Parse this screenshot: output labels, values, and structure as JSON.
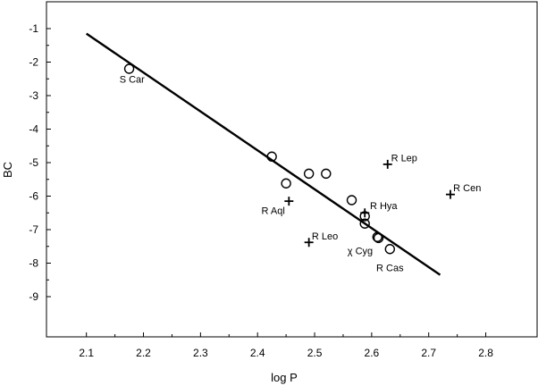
{
  "chart_data": {
    "type": "scatter",
    "xlabel": "log P",
    "ylabel": "BC",
    "xlim": [
      2.03,
      2.89
    ],
    "ylim": [
      -10.2,
      -0.2
    ],
    "grid": false,
    "x_ticks": [
      2.1,
      2.2,
      2.3,
      2.4,
      2.5,
      2.6,
      2.7,
      2.8
    ],
    "y_ticks": [
      -1,
      -2,
      -3,
      -4,
      -5,
      -6,
      -7,
      -8,
      -9
    ],
    "x_tick_labels": [
      "2.1",
      "2.2",
      "2.3",
      "2.4",
      "2.5",
      "2.6",
      "2.7",
      "2.8"
    ],
    "y_tick_labels": [
      "-1",
      "-2",
      "-3",
      "-4",
      "-5",
      "-6",
      "-7",
      "-8",
      "-9"
    ],
    "fit_line": {
      "x": [
        2.1,
        2.72
      ],
      "y": [
        -1.15,
        -8.35
      ]
    },
    "series": [
      {
        "marker": "circle",
        "points": [
          {
            "x": 2.175,
            "y": -2.2
          },
          {
            "x": 2.425,
            "y": -4.82
          },
          {
            "x": 2.45,
            "y": -5.62
          },
          {
            "x": 2.49,
            "y": -5.33
          },
          {
            "x": 2.52,
            "y": -5.33
          },
          {
            "x": 2.565,
            "y": -6.12
          },
          {
            "x": 2.588,
            "y": -6.6
          },
          {
            "x": 2.588,
            "y": -6.82
          },
          {
            "x": 2.61,
            "y": -7.22
          },
          {
            "x": 2.612,
            "y": -7.25
          },
          {
            "x": 2.632,
            "y": -7.58
          }
        ]
      },
      {
        "marker": "plus",
        "points": [
          {
            "x": 2.455,
            "y": -6.15
          },
          {
            "x": 2.49,
            "y": -7.38
          },
          {
            "x": 2.588,
            "y": -6.5
          },
          {
            "x": 2.628,
            "y": -5.05
          },
          {
            "x": 2.738,
            "y": -5.95
          }
        ]
      }
    ],
    "annotations": [
      {
        "text": "S Car",
        "x": 2.18,
        "y": -2.5,
        "anchor": "middle"
      },
      {
        "text": "R Lep",
        "x": 2.634,
        "y": -4.85,
        "anchor": "start"
      },
      {
        "text": "R Cen",
        "x": 2.743,
        "y": -5.75,
        "anchor": "start"
      },
      {
        "text": "R Aql",
        "x": 2.448,
        "y": -6.42,
        "anchor": "end"
      },
      {
        "text": "R Hya",
        "x": 2.597,
        "y": -6.28,
        "anchor": "start"
      },
      {
        "text": "R Leo",
        "x": 2.495,
        "y": -7.18,
        "anchor": "start"
      },
      {
        "text": "χ Cyg",
        "x": 2.602,
        "y": -7.62,
        "anchor": "end"
      },
      {
        "text": "R Cas",
        "x": 2.632,
        "y": -8.13,
        "anchor": "middle"
      }
    ]
  }
}
